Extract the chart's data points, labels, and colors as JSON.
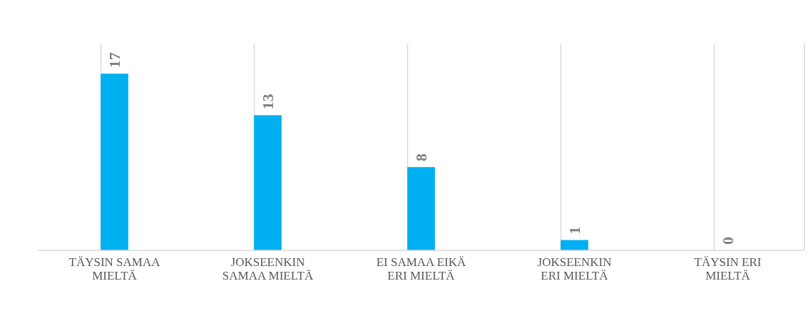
{
  "chart_data": {
    "type": "bar",
    "categories": [
      "TÄYSIN SAMAA MIELTÄ",
      "JOKSEENKIN SAMAA MIELTÄ",
      "EI SAMAA EIKÄ ERI MIELTÄ",
      "JOKSEENKIN ERI MIELTÄ",
      "TÄYSIN ERI MIELTÄ"
    ],
    "values": [
      17,
      13,
      8,
      1,
      0
    ],
    "color": "#00b0f0",
    "data_labels": true,
    "grid": "x",
    "tick_labels": "x"
  }
}
